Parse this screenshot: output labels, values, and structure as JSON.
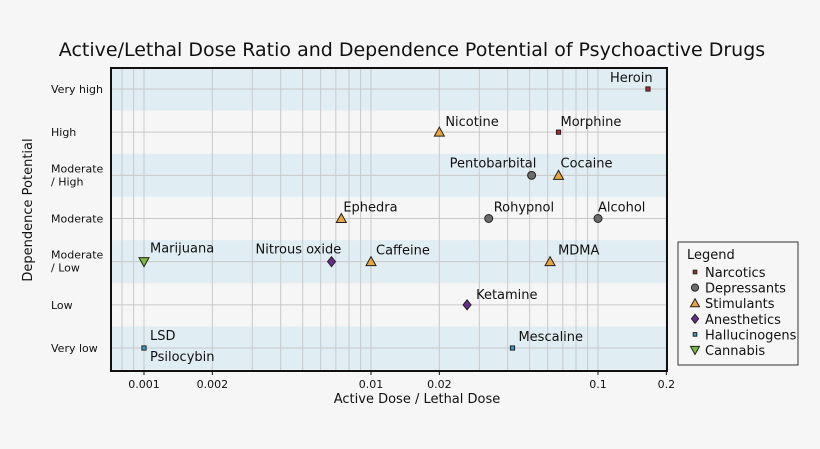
{
  "chart_data": {
    "type": "scatter",
    "title": "Active/Lethal Dose Ratio and Dependence Potential of Psychoactive Drugs",
    "xlabel": "Active Dose / Lethal Dose",
    "ylabel": "Dependence Potential",
    "x_scale": "log",
    "xlim": [
      0.00072,
      0.2
    ],
    "x_ticks": [
      0.001,
      0.002,
      0.01,
      0.02,
      0.1,
      0.2
    ],
    "x_tick_labels": [
      "0.001",
      "0.002",
      "0.01",
      "0.02",
      "0.1",
      "0.2"
    ],
    "y_categories": [
      "Very low",
      "Low",
      "Moderate / Low",
      "Moderate",
      "Moderate / High",
      "High",
      "Very high"
    ],
    "y_tick_labels": [
      [
        "Very low"
      ],
      [
        "Low"
      ],
      [
        "Moderate",
        "/ Low"
      ],
      [
        "Moderate"
      ],
      [
        "Moderate",
        "/ High"
      ],
      [
        "High"
      ],
      [
        "Very high"
      ]
    ],
    "grid": true,
    "legend": {
      "title": "Legend",
      "placement": "right",
      "entries": [
        {
          "name": "Narcotics",
          "marker": "square",
          "color": "#b3282e"
        },
        {
          "name": "Depressants",
          "marker": "circle",
          "color": "#6b6b6b"
        },
        {
          "name": "Stimulants",
          "marker": "triangle-up",
          "color": "#eba53a"
        },
        {
          "name": "Anesthetics",
          "marker": "diamond",
          "color": "#6a2b8c"
        },
        {
          "name": "Hallucinogens",
          "marker": "square",
          "color": "#3a9ccc"
        },
        {
          "name": "Cannabis",
          "marker": "triangle-down",
          "color": "#7cba3c"
        }
      ]
    },
    "points": [
      {
        "name": "Heroin",
        "x": 0.166,
        "y": "Very high",
        "group": "Narcotics"
      },
      {
        "name": "Morphine",
        "x": 0.067,
        "y": "High",
        "group": "Narcotics"
      },
      {
        "name": "Nicotine",
        "x": 0.02,
        "y": "High",
        "group": "Stimulants"
      },
      {
        "name": "Pentobarbital",
        "x": 0.051,
        "y": "Moderate / High",
        "group": "Depressants"
      },
      {
        "name": "Cocaine",
        "x": 0.067,
        "y": "Moderate / High",
        "group": "Stimulants"
      },
      {
        "name": "Ephedra",
        "x": 0.0074,
        "y": "Moderate",
        "group": "Stimulants"
      },
      {
        "name": "Rohypnol",
        "x": 0.033,
        "y": "Moderate",
        "group": "Depressants"
      },
      {
        "name": "Alcohol",
        "x": 0.1,
        "y": "Moderate",
        "group": "Depressants"
      },
      {
        "name": "Marijuana",
        "x": 0.001,
        "y": "Moderate / Low",
        "group": "Cannabis"
      },
      {
        "name": "Nitrous oxide",
        "x": 0.0067,
        "y": "Moderate / Low",
        "group": "Anesthetics"
      },
      {
        "name": "Caffeine",
        "x": 0.01,
        "y": "Moderate / Low",
        "group": "Stimulants"
      },
      {
        "name": "MDMA",
        "x": 0.0615,
        "y": "Moderate / Low",
        "group": "Stimulants"
      },
      {
        "name": "Ketamine",
        "x": 0.0265,
        "y": "Low",
        "group": "Anesthetics"
      },
      {
        "name": "LSD",
        "x": 0.001,
        "y": "Very low",
        "group": "Hallucinogens"
      },
      {
        "name": "Psilocybin",
        "x": 0.001,
        "y": "Very low",
        "group": "Hallucinogens"
      },
      {
        "name": "Mescaline",
        "x": 0.042,
        "y": "Very low",
        "group": "Hallucinogens"
      }
    ],
    "band_color": "#e0edf3",
    "background": "#f6f6f6"
  }
}
